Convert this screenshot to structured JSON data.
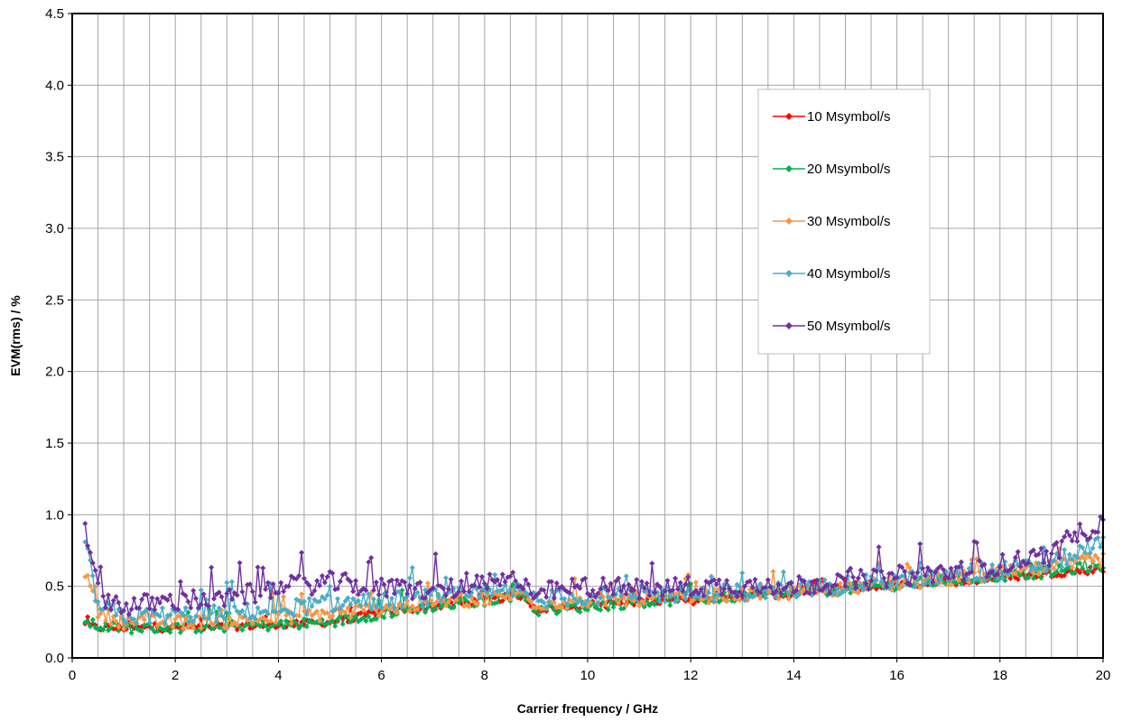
{
  "chart_data": {
    "type": "line",
    "title": "",
    "xlabel": "Carrier frequency / GHz",
    "ylabel": "EVM(rms) / %",
    "xlim": [
      0,
      20
    ],
    "ylim": [
      0,
      4.5
    ],
    "x_ticks": [
      "0",
      "2",
      "4",
      "6",
      "8",
      "10",
      "12",
      "14",
      "16",
      "18",
      "20"
    ],
    "y_ticks": [
      "0.0",
      "0.5",
      "1.0",
      "1.5",
      "2.0",
      "2.5",
      "3.0",
      "3.5",
      "4.0",
      "4.5"
    ],
    "grid": true,
    "legend_position": "upper-right-inside",
    "marker": "diamond",
    "x_range_measured": [
      0.25,
      20.0
    ],
    "x_step": 0.05,
    "series": [
      {
        "name": "10 Msymbol/s",
        "color": "#ff0000",
        "x": [
          0.25,
          0.5,
          1,
          2,
          3,
          4,
          5,
          6,
          7,
          8,
          8.75,
          9,
          10,
          11,
          12,
          13,
          14,
          15,
          16,
          17,
          18,
          19,
          20
        ],
        "y": [
          0.23,
          0.21,
          0.21,
          0.21,
          0.22,
          0.23,
          0.25,
          0.32,
          0.36,
          0.4,
          0.44,
          0.34,
          0.37,
          0.39,
          0.4,
          0.43,
          0.45,
          0.49,
          0.51,
          0.53,
          0.56,
          0.59,
          0.62
        ]
      },
      {
        "name": "20 Msymbol/s",
        "color": "#00b050",
        "x": [
          0.25,
          0.5,
          1,
          2,
          3,
          4,
          5,
          6,
          7,
          8,
          8.75,
          9,
          10,
          11,
          12,
          13,
          14,
          15,
          16,
          17,
          18,
          19,
          20
        ],
        "y": [
          0.25,
          0.22,
          0.21,
          0.21,
          0.22,
          0.23,
          0.25,
          0.31,
          0.36,
          0.4,
          0.45,
          0.33,
          0.36,
          0.39,
          0.41,
          0.43,
          0.45,
          0.48,
          0.51,
          0.54,
          0.57,
          0.6,
          0.65
        ]
      },
      {
        "name": "30 Msymbol/s",
        "color": "#f79646",
        "x": [
          0.25,
          0.5,
          1,
          2,
          3,
          4,
          5,
          6,
          7,
          8,
          8.75,
          9,
          10,
          11,
          12,
          13,
          14,
          15,
          16,
          17,
          18,
          19,
          20
        ],
        "y": [
          0.6,
          0.32,
          0.25,
          0.25,
          0.26,
          0.28,
          0.31,
          0.34,
          0.39,
          0.41,
          0.45,
          0.38,
          0.4,
          0.41,
          0.43,
          0.44,
          0.46,
          0.49,
          0.52,
          0.55,
          0.59,
          0.63,
          0.69
        ]
      },
      {
        "name": "40 Msymbol/s",
        "color": "#4bacc6",
        "x": [
          0.25,
          0.5,
          1,
          2,
          3,
          4,
          5,
          6,
          7,
          8,
          8.75,
          9,
          10,
          11,
          12,
          13,
          14,
          15,
          16,
          17,
          18,
          19,
          20
        ],
        "y": [
          0.8,
          0.36,
          0.29,
          0.3,
          0.31,
          0.34,
          0.38,
          0.4,
          0.42,
          0.44,
          0.47,
          0.41,
          0.43,
          0.44,
          0.45,
          0.46,
          0.48,
          0.51,
          0.54,
          0.57,
          0.61,
          0.66,
          0.8
        ]
      },
      {
        "name": "50 Msymbol/s",
        "color": "#7030a0",
        "x": [
          0.25,
          0.5,
          1,
          2,
          3,
          4,
          5,
          6,
          7,
          8,
          8.75,
          9,
          10,
          11,
          12,
          13,
          14,
          15,
          16,
          17,
          18,
          19,
          20
        ],
        "y": [
          0.95,
          0.45,
          0.36,
          0.4,
          0.41,
          0.49,
          0.53,
          0.49,
          0.47,
          0.51,
          0.55,
          0.45,
          0.5,
          0.48,
          0.5,
          0.5,
          0.51,
          0.53,
          0.57,
          0.6,
          0.65,
          0.72,
          0.97
        ]
      }
    ]
  }
}
